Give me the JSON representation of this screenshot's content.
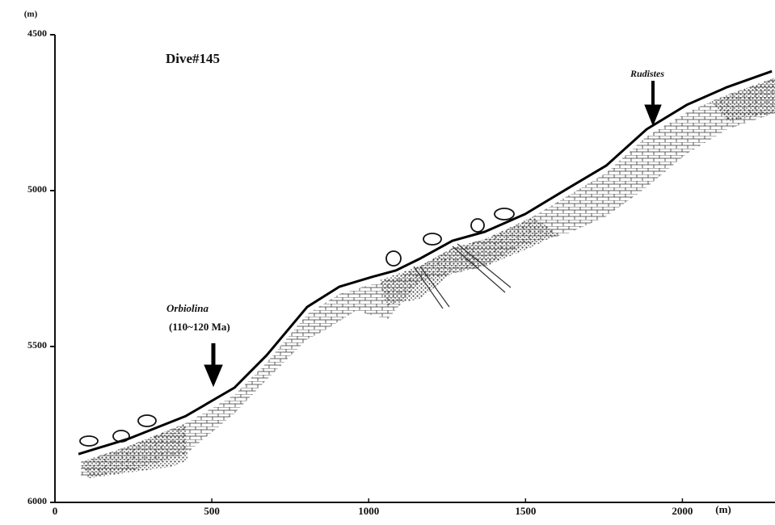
{
  "chart_data": {
    "type": "line",
    "title": "Dive#145",
    "x": [
      75,
      237,
      417,
      572,
      675,
      804,
      907,
      1010,
      1087,
      1164,
      1267,
      1370,
      1499,
      1628,
      1757,
      1886,
      2014,
      2143,
      2285
    ],
    "values": [
      5845,
      5795,
      5723,
      5632,
      5528,
      5373,
      5308,
      5277,
      5256,
      5218,
      5161,
      5132,
      5075,
      4997,
      4920,
      4803,
      4725,
      4668,
      4617
    ],
    "color": "#000000",
    "xlim": [
      0,
      2290
    ],
    "ylim": [
      4500,
      6000
    ],
    "y_inverted": true,
    "xticks": [
      0,
      500,
      1000,
      1500,
      2000
    ],
    "yticks": [
      4500,
      5000,
      5500,
      6000
    ],
    "x_unit": "(m)",
    "y_unit": "(m)",
    "annotations": [
      "Rudistes",
      "Orbiolina",
      "(110~120 Ma)"
    ]
  }
}
